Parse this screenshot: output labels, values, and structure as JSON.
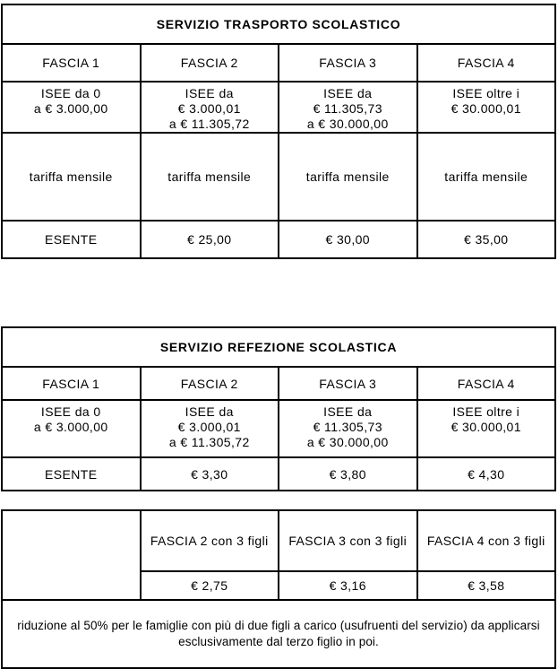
{
  "page": {
    "background_color": "#ffffff",
    "text_color": "#000000",
    "border_color": "#000000"
  },
  "transport_table": {
    "title": "SERVIZIO TRASPORTO SCOLASTICO",
    "fascia_headers": [
      "FASCIA 1",
      "FASCIA 2",
      "FASCIA 3",
      "FASCIA 4"
    ],
    "isee_ranges": [
      [
        "ISEE da 0",
        "a € 3.000,00"
      ],
      [
        "ISEE da",
        "€ 3.000,01",
        "a € 11.305,72"
      ],
      [
        "ISEE da",
        "€ 11.305,73",
        "a € 30.000,00"
      ],
      [
        "ISEE oltre i",
        "€ 30.000,01"
      ]
    ],
    "tariff_type_row": [
      "tariffa mensile",
      "tariffa mensile",
      "tariffa mensile",
      "tariffa mensile"
    ],
    "tariffs": [
      "ESENTE",
      "€ 25,00",
      "€ 30,00",
      "€ 35,00"
    ]
  },
  "refezione_table": {
    "title": "SERVIZIO REFEZIONE SCOLASTICA",
    "fascia_headers": [
      "FASCIA 1",
      "FASCIA 2",
      "FASCIA 3",
      "FASCIA 4"
    ],
    "isee_ranges": [
      [
        "ISEE da 0",
        "a € 3.000,00"
      ],
      [
        "ISEE da",
        "€ 3.000,01",
        "a € 11.305,72"
      ],
      [
        "ISEE da",
        "€ 11.305,73",
        "a € 30.000,00"
      ],
      [
        "ISEE oltre i",
        "€ 30.000,01"
      ]
    ],
    "tariffs": [
      "ESENTE",
      "€ 3,30",
      "€ 3,80",
      "€ 4,30"
    ]
  },
  "three_children_table": {
    "headers": [
      "FASCIA 2 con 3 figli",
      "FASCIA 3 con 3 figli",
      "FASCIA 4 con 3 figli"
    ],
    "tariffs": [
      "€ 2,75",
      "€ 3,16",
      "€ 3,58"
    ],
    "note": "riduzione al 50% per le famiglie con più di due figli a carico (usufruenti del servizio) da applicarsi esclusivamente dal terzo figlio in poi."
  }
}
